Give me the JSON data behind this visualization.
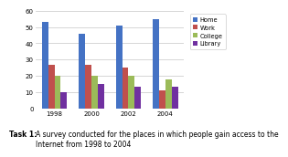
{
  "years": [
    "1998",
    "2000",
    "2002",
    "2004"
  ],
  "series": {
    "Home": [
      53,
      46,
      51,
      55
    ],
    "Work": [
      27,
      27,
      25,
      11
    ],
    "College": [
      20,
      20,
      20,
      18
    ],
    "Library": [
      10,
      15,
      13,
      13
    ]
  },
  "colors": {
    "Home": "#4472C4",
    "Work": "#C0504D",
    "College": "#9BBB59",
    "Library": "#7030A0"
  },
  "ylim": [
    0,
    60
  ],
  "yticks": [
    0,
    10,
    20,
    30,
    40,
    50,
    60
  ],
  "legend_order": [
    "Home",
    "Work",
    "College",
    "Library"
  ],
  "caption_bold": "Task 1: ",
  "caption_normal": "A survey conducted for the places in which people gain access to the\nInternet from 1998 to 2004",
  "background_color": "#FFFFFF",
  "plot_bg_color": "#FFFFFF",
  "grid_color": "#D0D0D0"
}
